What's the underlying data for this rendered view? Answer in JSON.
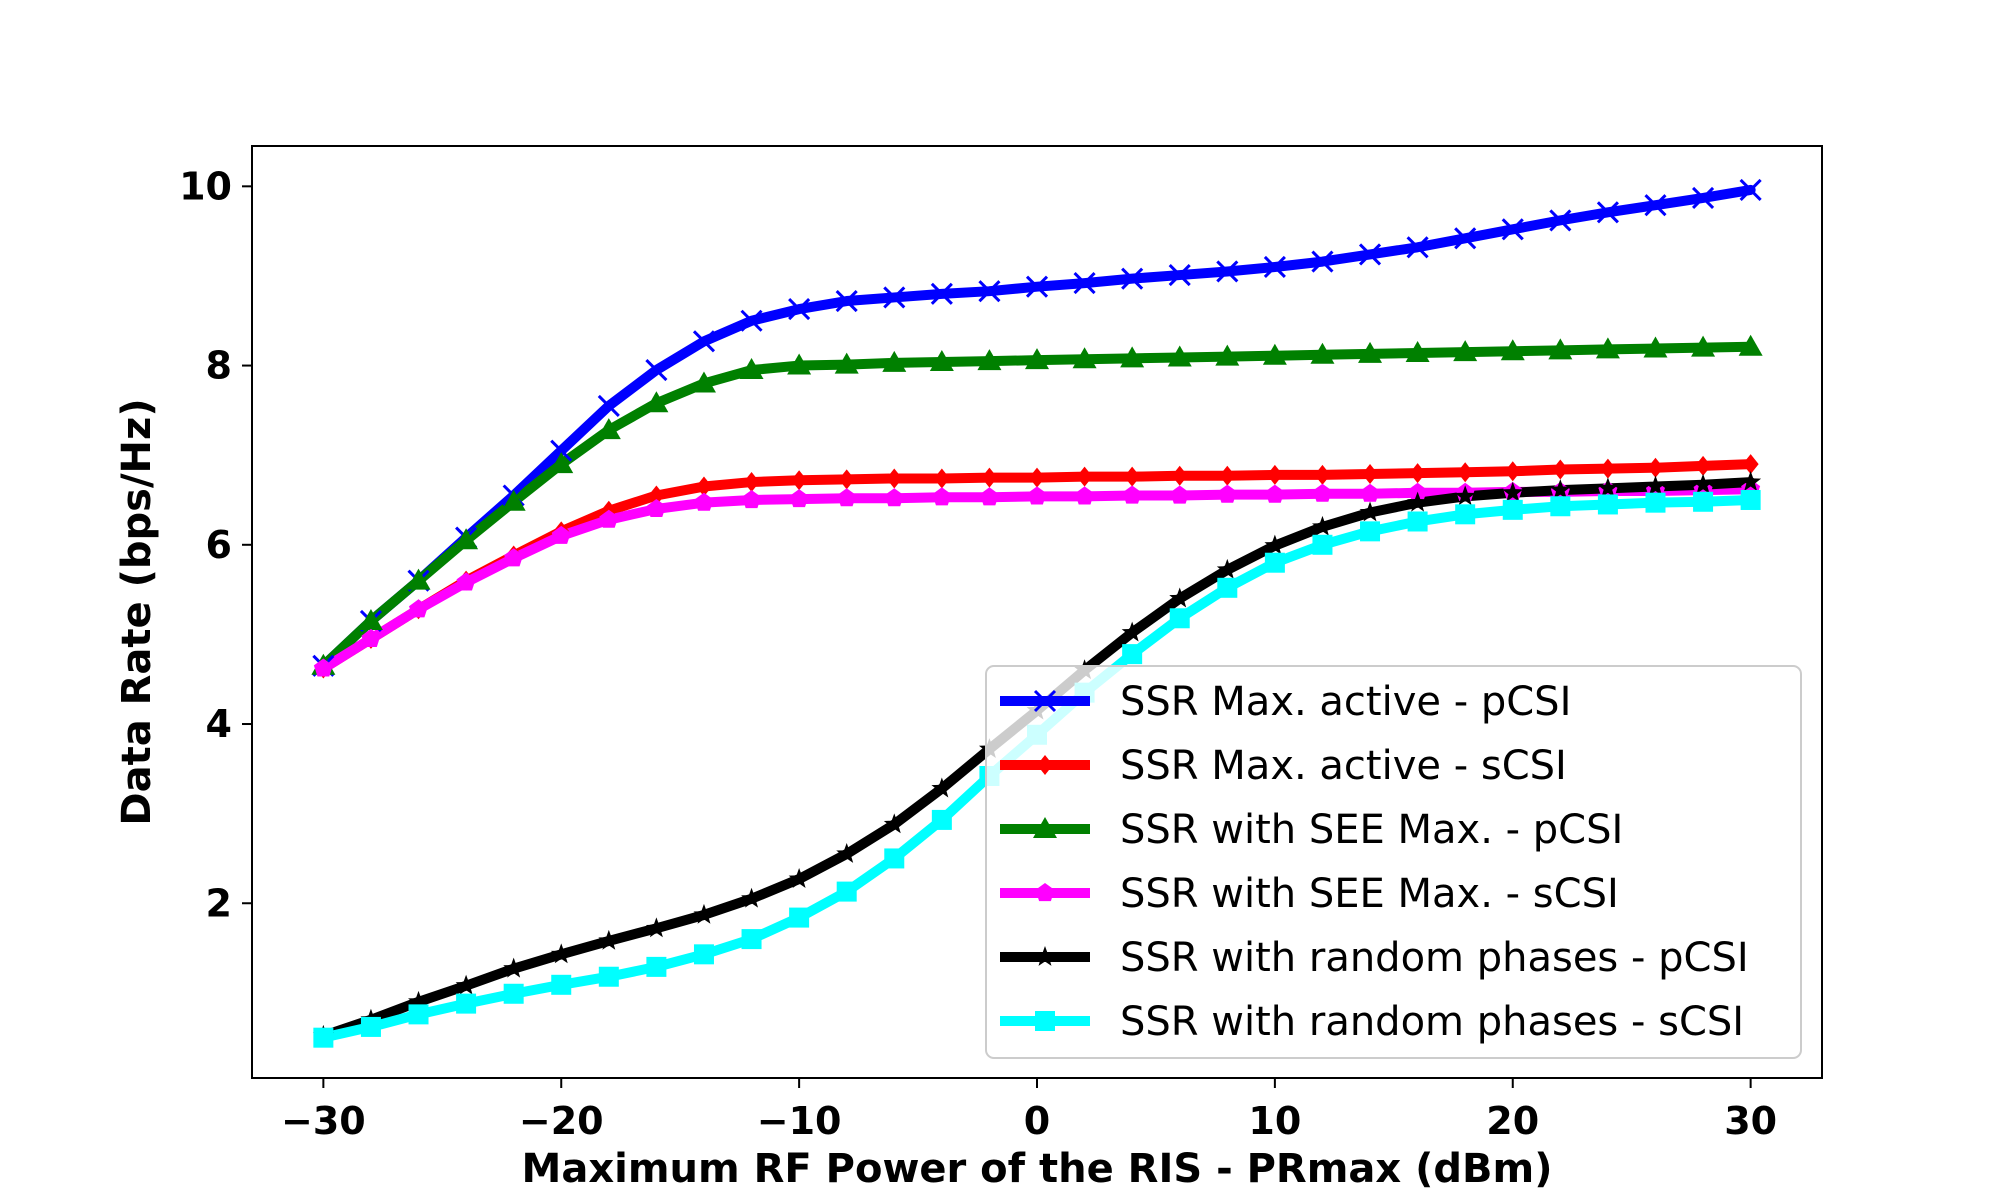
{
  "chart_data": {
    "type": "line",
    "title": "",
    "xlabel": "Maximum RF Power of the RIS - PRmax (dBm)",
    "ylabel": "Data Rate (bps/Hz)",
    "xlim": [
      -33,
      33
    ],
    "ylim": [
      0.05,
      10.45
    ],
    "xticks": [
      -30,
      -20,
      -10,
      0,
      10,
      20,
      30
    ],
    "xtick_labels": [
      "−30",
      "−20",
      "−10",
      "0",
      "10",
      "20",
      "30"
    ],
    "yticks": [
      2,
      4,
      6,
      8,
      10
    ],
    "ytick_labels": [
      "2",
      "4",
      "6",
      "8",
      "10"
    ],
    "grid": false,
    "legend_position": "lower-right",
    "x": [
      -30,
      -28,
      -26,
      -24,
      -22,
      -20,
      -18,
      -16,
      -14,
      -12,
      -10,
      -8,
      -6,
      -4,
      -2,
      0,
      2,
      4,
      6,
      8,
      10,
      12,
      14,
      16,
      18,
      20,
      22,
      24,
      26,
      28,
      30
    ],
    "series": [
      {
        "name": "SSR Max. active - pCSI",
        "color": "#0000ff",
        "marker": "x",
        "values": [
          4.65,
          5.15,
          5.6,
          6.08,
          6.55,
          7.05,
          7.55,
          7.95,
          8.27,
          8.5,
          8.63,
          8.72,
          8.76,
          8.8,
          8.83,
          8.88,
          8.92,
          8.97,
          9.01,
          9.05,
          9.1,
          9.16,
          9.24,
          9.32,
          9.42,
          9.52,
          9.62,
          9.71,
          9.79,
          9.87,
          9.96
        ]
      },
      {
        "name": "SSR Max. active - sCSI",
        "color": "#ff0000",
        "marker": "D",
        "values": [
          4.62,
          4.95,
          5.28,
          5.6,
          5.88,
          6.15,
          6.38,
          6.55,
          6.65,
          6.7,
          6.72,
          6.73,
          6.74,
          6.74,
          6.75,
          6.75,
          6.76,
          6.76,
          6.77,
          6.77,
          6.78,
          6.78,
          6.79,
          6.8,
          6.81,
          6.82,
          6.84,
          6.85,
          6.86,
          6.88,
          6.9
        ]
      },
      {
        "name": "SSR with SEE Max. - pCSI",
        "color": "#008000",
        "marker": "^",
        "values": [
          4.65,
          5.15,
          5.6,
          6.05,
          6.48,
          6.9,
          7.28,
          7.58,
          7.8,
          7.95,
          8.0,
          8.01,
          8.03,
          8.04,
          8.05,
          8.06,
          8.07,
          8.08,
          8.09,
          8.1,
          8.11,
          8.12,
          8.13,
          8.14,
          8.15,
          8.16,
          8.17,
          8.18,
          8.19,
          8.2,
          8.21
        ]
      },
      {
        "name": "SSR with SEE Max. - sCSI",
        "color": "#ff00ff",
        "marker": "p",
        "values": [
          4.62,
          4.95,
          5.28,
          5.58,
          5.85,
          6.1,
          6.28,
          6.4,
          6.47,
          6.5,
          6.51,
          6.52,
          6.52,
          6.53,
          6.53,
          6.54,
          6.54,
          6.55,
          6.55,
          6.56,
          6.56,
          6.57,
          6.57,
          6.58,
          6.58,
          6.59,
          6.59,
          6.6,
          6.6,
          6.61,
          6.62
        ]
      },
      {
        "name": "SSR with random phases - pCSI",
        "color": "#000000",
        "marker": "*",
        "values": [
          0.52,
          0.7,
          0.9,
          1.08,
          1.27,
          1.43,
          1.58,
          1.72,
          1.87,
          2.05,
          2.27,
          2.55,
          2.88,
          3.28,
          3.72,
          4.15,
          4.6,
          5.02,
          5.4,
          5.72,
          5.99,
          6.2,
          6.36,
          6.47,
          6.54,
          6.58,
          6.61,
          6.63,
          6.65,
          6.67,
          6.7
        ]
      },
      {
        "name": "SSR with random phases - sCSI",
        "color": "#00ffff",
        "marker": "s",
        "values": [
          0.5,
          0.62,
          0.76,
          0.88,
          0.99,
          1.09,
          1.18,
          1.29,
          1.43,
          1.6,
          1.84,
          2.13,
          2.5,
          2.93,
          3.42,
          3.88,
          4.35,
          4.78,
          5.18,
          5.52,
          5.8,
          6.0,
          6.15,
          6.26,
          6.34,
          6.39,
          6.43,
          6.45,
          6.47,
          6.48,
          6.5
        ]
      }
    ]
  }
}
